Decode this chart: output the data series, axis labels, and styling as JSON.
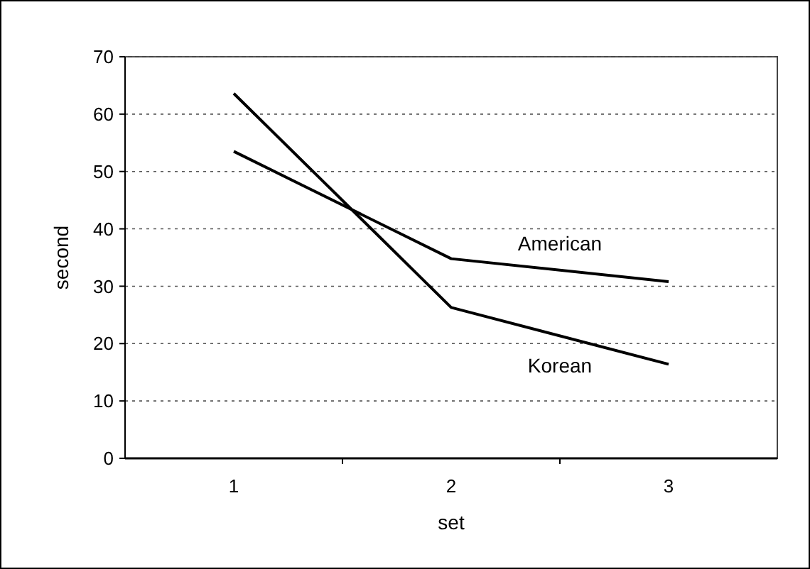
{
  "chart_data": {
    "type": "line",
    "categories": [
      "1",
      "2",
      "3"
    ],
    "xlabel": "set",
    "ylabel": "second",
    "series": [
      {
        "name": "American",
        "color": "#000000",
        "values": [
          53.5,
          34.8,
          30.8
        ]
      },
      {
        "name": "Korean",
        "color": "#000000",
        "values": [
          63.6,
          26.3,
          16.4
        ]
      }
    ],
    "ylim": [
      0,
      70
    ],
    "yticks": [
      0,
      10,
      20,
      30,
      40,
      50,
      60,
      70
    ],
    "grid": "y",
    "marker": "none",
    "line_style": "solid"
  }
}
